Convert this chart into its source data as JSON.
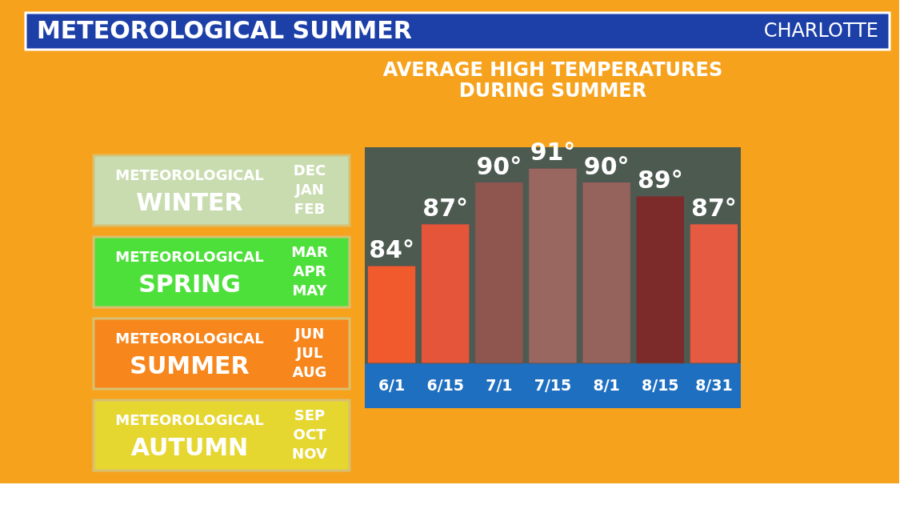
{
  "chart_data": [
    {
      "type": "other",
      "title": "METEOROLOGICAL SUMMER",
      "subtitle": "CHARLOTTE",
      "annotations": [
        "METEOROLOGICAL",
        "WINTER",
        "DEC",
        "JAN",
        "FEB",
        "METEOROLOGICAL",
        "SPRING",
        "MAR",
        "APR",
        "MAY",
        "METEOROLOGICAL",
        "SUMMER",
        "JUN",
        "JUL",
        "AUG",
        "METEOROLOGICAL",
        "AUTUMN",
        "SEP",
        "OCT",
        "NOV"
      ],
      "colors": [
        "#c9dcb0",
        "#4ee03a",
        "#f7861c",
        "#e6d630"
      ]
    },
    {
      "type": "bar",
      "title": "AVERAGE HIGH TEMPERATURES DURING SUMMER",
      "categories": [
        "6/1",
        "6/15",
        "7/1",
        "7/15",
        "8/1",
        "8/15",
        "8/31"
      ],
      "values": [
        84,
        87,
        90,
        91,
        90,
        89,
        87
      ],
      "colors": [
        "#f05a2c",
        "#e4553a",
        "#8e564f",
        "#9a6760",
        "#96625c",
        "#7c2a2a",
        "#e55a40"
      ],
      "value_labels": [
        "84°",
        "87°",
        "90°",
        "91°",
        "90°",
        "89°",
        "87°"
      ],
      "ylim": [
        77,
        92.5
      ],
      "grid": false
    }
  ]
}
